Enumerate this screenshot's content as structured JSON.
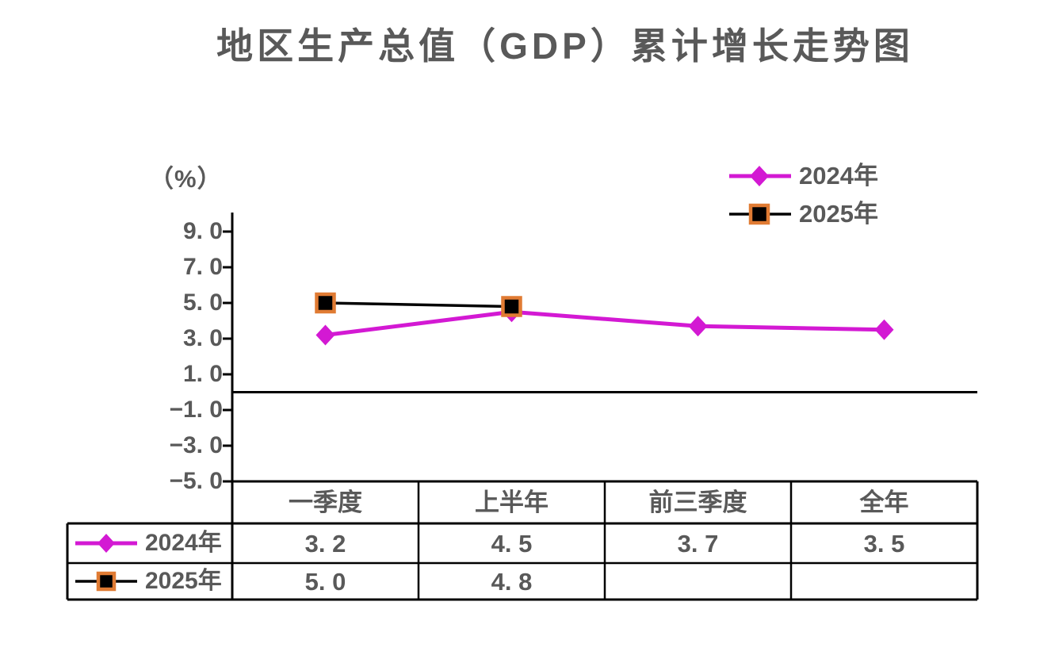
{
  "title": "地区生产总值（GDP）累计增长走势图",
  "y_axis": {
    "unit_label": "（%）",
    "ticks": [
      "9. 0",
      "7. 0",
      "5. 0",
      "3. 0",
      "1. 0",
      "−1. 0",
      "−3. 0",
      "−5. 0"
    ]
  },
  "legend": {
    "items": [
      {
        "label": "2024年",
        "marker": "diamond-marker",
        "color": "#D319D3"
      },
      {
        "label": "2025年",
        "marker": "square-marker",
        "color": "#000000",
        "marker_border": "#E07B33"
      }
    ]
  },
  "table": {
    "column_headers": [
      "一季度",
      "上半年",
      "前三季度",
      "全年"
    ],
    "rows": [
      {
        "label": "2024年",
        "cells": [
          "3. 2",
          "4. 5",
          "3. 7",
          "3. 5"
        ]
      },
      {
        "label": "2025年",
        "cells": [
          "5. 0",
          "4. 8",
          "",
          ""
        ]
      }
    ]
  },
  "chart_data": {
    "type": "line",
    "title": "地区生产总值（GDP）累计增长走势图",
    "categories": [
      "一季度",
      "上半年",
      "前三季度",
      "全年"
    ],
    "series": [
      {
        "name": "2024年",
        "values": [
          3.2,
          4.5,
          3.7,
          3.5
        ],
        "color": "#D319D3",
        "marker": "diamond",
        "line_width": 5
      },
      {
        "name": "2025年",
        "values": [
          5.0,
          4.8,
          null,
          null
        ],
        "color": "#000000",
        "marker": "square",
        "marker_border": "#E07B33",
        "line_width": 3.5
      }
    ],
    "ylabel": "（%）",
    "ylim": [
      -5.0,
      9.0
    ],
    "ytick_step": 2.0,
    "grid": false,
    "legend_position": "top-right",
    "data_table_shown": true
  },
  "colors": {
    "text": "#595959",
    "axis": "#000000",
    "series_2024": "#D319D3",
    "series_2025": "#000000",
    "marker_border_2025": "#E07B33"
  }
}
